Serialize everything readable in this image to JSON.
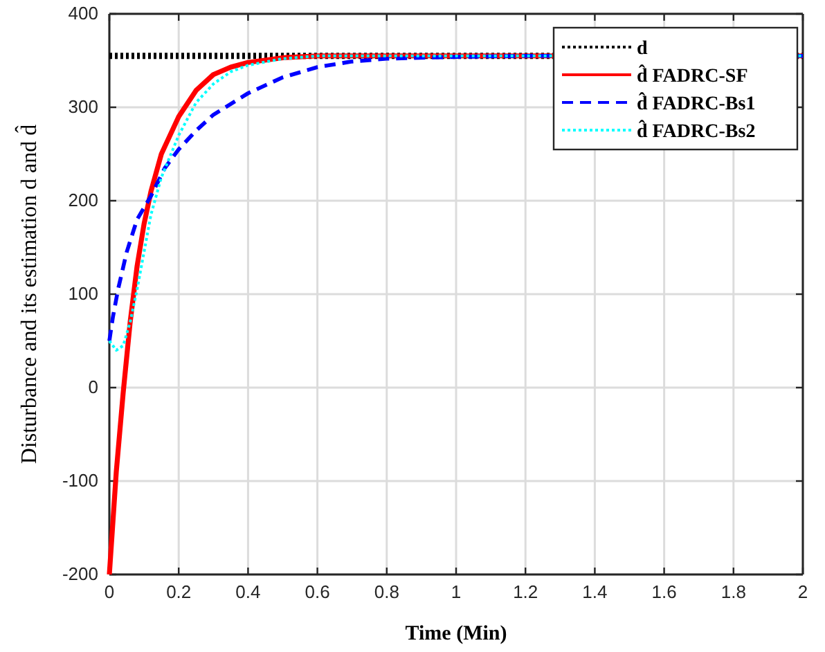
{
  "chart_data": {
    "type": "line",
    "xlabel": "Time (Min)",
    "ylabel": "Disturbance and its estimation d and d̂",
    "xlim": [
      0,
      2
    ],
    "ylim": [
      -200,
      400
    ],
    "xticks": [
      0,
      0.2,
      0.4,
      0.6,
      0.8,
      1,
      1.2,
      1.4,
      1.6,
      1.8,
      2
    ],
    "yticks": [
      -200,
      -100,
      0,
      100,
      200,
      300,
      400
    ],
    "grid": true,
    "legend": "top right",
    "series": [
      {
        "name": "d",
        "color": "#000000",
        "line_style": "dotted",
        "x": [
          0,
          2
        ],
        "values": [
          355,
          355
        ]
      },
      {
        "name": "d̂ FADRC-SF",
        "color": "#ff0000",
        "line_style": "solid",
        "x": [
          0,
          0.02,
          0.04,
          0.06,
          0.08,
          0.1,
          0.12,
          0.15,
          0.2,
          0.25,
          0.3,
          0.35,
          0.4,
          0.5,
          0.6,
          2
        ],
        "values": [
          -200,
          -90,
          -5,
          70,
          130,
          175,
          210,
          250,
          290,
          318,
          335,
          343,
          348,
          353,
          355,
          355
        ]
      },
      {
        "name": "d̂ FADRC-Bs1",
        "color": "#0000ff",
        "line_style": "dashed",
        "x": [
          0,
          0.01,
          0.025,
          0.05,
          0.08,
          0.12,
          0.16,
          0.2,
          0.25,
          0.3,
          0.4,
          0.5,
          0.6,
          0.7,
          0.8,
          1,
          1.2,
          2
        ],
        "values": [
          50,
          75,
          105,
          145,
          180,
          205,
          235,
          255,
          275,
          292,
          315,
          332,
          343,
          349,
          352,
          354,
          355,
          355
        ]
      },
      {
        "name": "d̂ FADRC-Bs2",
        "color": "#00ffff",
        "line_style": "dotted",
        "x": [
          0,
          0.02,
          0.04,
          0.06,
          0.08,
          0.1,
          0.12,
          0.15,
          0.2,
          0.25,
          0.3,
          0.35,
          0.4,
          0.5,
          0.6,
          2
        ],
        "values": [
          50,
          40,
          45,
          70,
          105,
          145,
          185,
          225,
          270,
          305,
          325,
          338,
          345,
          352,
          355,
          355
        ]
      }
    ]
  }
}
